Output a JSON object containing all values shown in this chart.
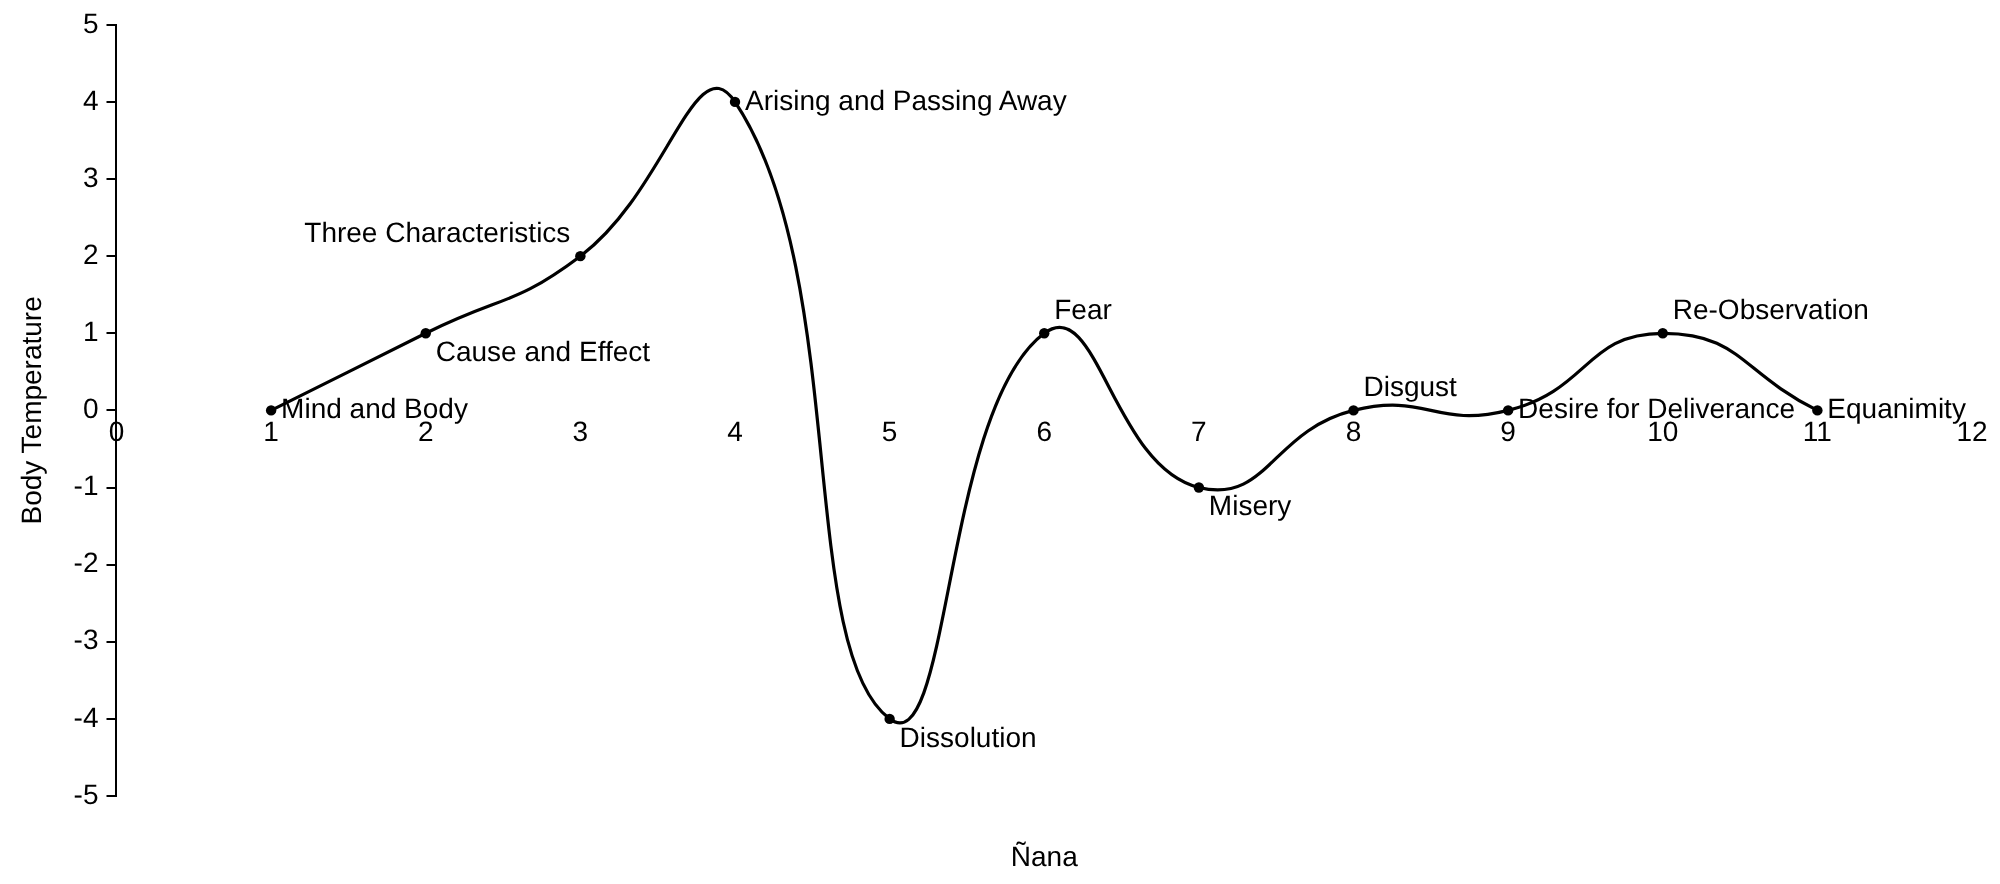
{
  "chart_data": {
    "type": "line",
    "xlabel": "Ñana",
    "ylabel": "Body Temperature",
    "x": [
      1,
      2,
      3,
      4,
      5,
      6,
      7,
      8,
      9,
      10,
      11
    ],
    "series": [
      {
        "color": "#000000",
        "values": [
          0,
          1,
          2,
          4,
          -4,
          1,
          -1,
          0,
          0,
          1,
          0
        ]
      }
    ],
    "xlim": [
      0,
      12
    ],
    "xticks": [
      0,
      1,
      2,
      3,
      4,
      5,
      6,
      7,
      8,
      9,
      10,
      11,
      12
    ],
    "ylim": [
      -5,
      5
    ],
    "yticks": [
      -5,
      -4,
      -3,
      -2,
      -1,
      0,
      1,
      2,
      3,
      4,
      5
    ],
    "grid": false,
    "legend": false,
    "marker": "circle",
    "line_style": "solid",
    "annotations": [
      {
        "text": "Mind and Body",
        "x": 1,
        "y": 0
      },
      {
        "text": "Cause and Effect",
        "x": 2,
        "y": 1
      },
      {
        "text": "Three Characteristics",
        "x": 3,
        "y": 2
      },
      {
        "text": "Arising and Passing Away",
        "x": 4,
        "y": 4
      },
      {
        "text": "Dissolution",
        "x": 5,
        "y": -4
      },
      {
        "text": "Fear",
        "x": 6,
        "y": 1
      },
      {
        "text": "Misery",
        "x": 7,
        "y": -1
      },
      {
        "text": "Disgust",
        "x": 8,
        "y": 0
      },
      {
        "text": "Desire for Deliverance",
        "x": 9,
        "y": 0
      },
      {
        "text": "Re-Observation",
        "x": 10,
        "y": 1
      },
      {
        "text": "Equanimity",
        "x": 11,
        "y": 0
      }
    ]
  }
}
